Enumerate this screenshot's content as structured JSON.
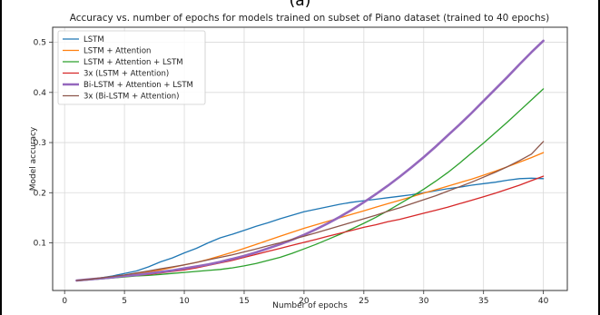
{
  "panel_label": "(a)",
  "chart_data": {
    "type": "line",
    "title": "Accuracy vs. number of epochs for models trained on subset of Piano dataset (trained to 40 epochs)",
    "xlabel": "Number of epochs",
    "ylabel": "Model accuracy",
    "xlim": [
      -1,
      42
    ],
    "ylim": [
      0.005,
      0.53
    ],
    "xticks": [
      0,
      5,
      10,
      15,
      20,
      25,
      30,
      35,
      40
    ],
    "yticks": [
      0.1,
      0.2,
      0.3,
      0.4,
      0.5
    ],
    "ytick_labels": [
      "0.1",
      "0.2",
      "0.3",
      "0.4",
      "0.5"
    ],
    "grid": true,
    "legend_position": "top-left",
    "x": [
      1,
      2,
      3,
      4,
      5,
      6,
      7,
      8,
      9,
      10,
      11,
      12,
      13,
      14,
      15,
      16,
      17,
      18,
      19,
      20,
      21,
      22,
      23,
      24,
      25,
      26,
      27,
      28,
      29,
      30,
      31,
      32,
      33,
      34,
      35,
      36,
      37,
      38,
      39,
      40
    ],
    "series": [
      {
        "name": "LSTM",
        "color": "#1f77b4",
        "width": 1.3,
        "values": [
          0.025,
          0.027,
          0.03,
          0.034,
          0.039,
          0.044,
          0.052,
          0.062,
          0.07,
          0.08,
          0.089,
          0.1,
          0.11,
          0.117,
          0.125,
          0.133,
          0.14,
          0.148,
          0.155,
          0.162,
          0.167,
          0.172,
          0.177,
          0.181,
          0.184,
          0.187,
          0.19,
          0.193,
          0.196,
          0.2,
          0.204,
          0.208,
          0.211,
          0.215,
          0.218,
          0.221,
          0.225,
          0.228,
          0.229,
          0.228
        ]
      },
      {
        "name": "LSTM + Attention",
        "color": "#ff7f0e",
        "width": 1.3,
        "values": [
          0.025,
          0.027,
          0.029,
          0.032,
          0.035,
          0.038,
          0.042,
          0.046,
          0.051,
          0.056,
          0.061,
          0.067,
          0.074,
          0.081,
          0.089,
          0.097,
          0.105,
          0.113,
          0.121,
          0.129,
          0.136,
          0.143,
          0.15,
          0.157,
          0.164,
          0.171,
          0.178,
          0.185,
          0.192,
          0.199,
          0.206,
          0.213,
          0.22,
          0.227,
          0.235,
          0.243,
          0.252,
          0.261,
          0.27,
          0.28
        ]
      },
      {
        "name": "LSTM + Attention + LSTM",
        "color": "#2ca02c",
        "width": 1.3,
        "values": [
          0.024,
          0.026,
          0.028,
          0.03,
          0.032,
          0.034,
          0.035,
          0.037,
          0.039,
          0.041,
          0.043,
          0.045,
          0.047,
          0.05,
          0.054,
          0.059,
          0.065,
          0.071,
          0.079,
          0.088,
          0.097,
          0.107,
          0.117,
          0.128,
          0.139,
          0.151,
          0.164,
          0.178,
          0.192,
          0.207,
          0.223,
          0.24,
          0.259,
          0.279,
          0.299,
          0.32,
          0.341,
          0.363,
          0.385,
          0.407
        ]
      },
      {
        "name": "3x (LSTM + Attention)",
        "color": "#d62728",
        "width": 1.3,
        "values": [
          0.025,
          0.027,
          0.029,
          0.031,
          0.033,
          0.035,
          0.037,
          0.04,
          0.043,
          0.046,
          0.05,
          0.055,
          0.06,
          0.065,
          0.071,
          0.077,
          0.083,
          0.089,
          0.095,
          0.101,
          0.107,
          0.113,
          0.119,
          0.125,
          0.131,
          0.136,
          0.142,
          0.147,
          0.153,
          0.159,
          0.165,
          0.171,
          0.178,
          0.185,
          0.192,
          0.199,
          0.207,
          0.215,
          0.224,
          0.233
        ]
      },
      {
        "name": "Bi-LSTM + Attention + LSTM",
        "color": "#9467bd",
        "width": 2.6,
        "values": [
          0.025,
          0.027,
          0.029,
          0.031,
          0.034,
          0.036,
          0.039,
          0.042,
          0.045,
          0.049,
          0.053,
          0.057,
          0.062,
          0.068,
          0.074,
          0.081,
          0.089,
          0.097,
          0.106,
          0.116,
          0.127,
          0.139,
          0.152,
          0.166,
          0.181,
          0.197,
          0.214,
          0.232,
          0.251,
          0.271,
          0.292,
          0.314,
          0.336,
          0.359,
          0.383,
          0.407,
          0.431,
          0.456,
          0.48,
          0.503
        ]
      },
      {
        "name": "3x (Bi-LSTM + Attention)",
        "color": "#8c564b",
        "width": 1.3,
        "values": [
          0.025,
          0.027,
          0.03,
          0.033,
          0.036,
          0.04,
          0.044,
          0.048,
          0.052,
          0.056,
          0.061,
          0.066,
          0.071,
          0.076,
          0.082,
          0.088,
          0.094,
          0.1,
          0.107,
          0.113,
          0.12,
          0.127,
          0.134,
          0.141,
          0.148,
          0.155,
          0.163,
          0.17,
          0.178,
          0.186,
          0.194,
          0.203,
          0.212,
          0.221,
          0.231,
          0.241,
          0.252,
          0.264,
          0.277,
          0.302
        ]
      }
    ]
  }
}
